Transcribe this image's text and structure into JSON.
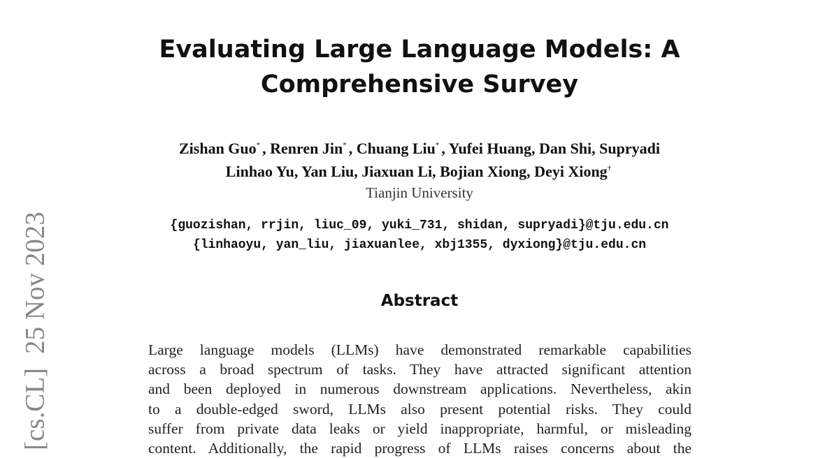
{
  "sidebar": {
    "category": "[cs.CL]",
    "date": "25 Nov 2023"
  },
  "header": {
    "title_lines": [
      "Evaluating Large Language Models: A",
      "Comprehensive Survey"
    ]
  },
  "authors": {
    "lines": [
      [
        {
          "name": "Zishan Guo",
          "mark": "*"
        },
        {
          "name": ", Renren Jin",
          "mark": "*"
        },
        {
          "name": ", Chuang Liu",
          "mark": "*"
        },
        {
          "name": ", Yufei Huang, Dan Shi, Supryadi"
        }
      ],
      [
        {
          "name": "Linhao Yu, Yan Liu, Jiaxuan Li, Bojian Xiong, Deyi Xiong",
          "mark": "†"
        }
      ]
    ],
    "affiliation": "Tianjin University",
    "emails": [
      "{guozishan, rrjin, liuc_09, yuki_731, shidan, supryadi}@tju.edu.cn",
      "{linhaoyu, yan_liu, jiaxuanlee, xbj1355, dyxiong}@tju.edu.cn"
    ]
  },
  "abstract": {
    "heading": "Abstract",
    "lines": [
      "Large language models (LLMs) have demonstrated remarkable capabilities",
      "across a broad spectrum of tasks. They have attracted significant attention",
      "and been deployed in numerous downstream applications. Nevertheless, akin",
      "to a double-edged sword, LLMs also present potential risks. They could",
      "suffer from private data leaks or yield inappropriate, harmful, or misleading",
      "content. Additionally, the rapid progress of LLMs raises concerns about the"
    ]
  }
}
